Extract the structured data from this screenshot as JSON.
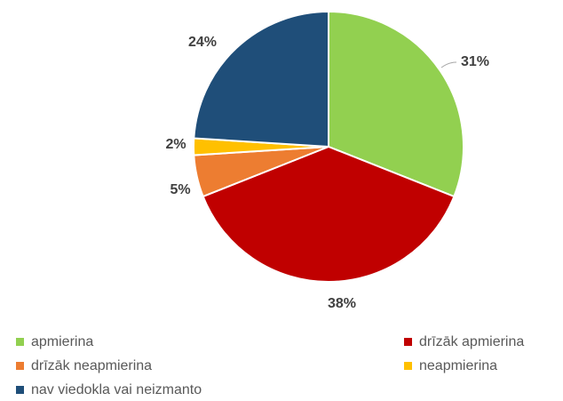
{
  "chart_data": {
    "type": "pie",
    "categories": [
      "apmierina",
      "drīzāk apmierina",
      "drīzāk neapmierina",
      "neapmierina",
      "nav viedokla vai neizmanto"
    ],
    "values": [
      31,
      38,
      5,
      2,
      24
    ],
    "value_labels": [
      "31%",
      "38%",
      "5%",
      "2%",
      "24%"
    ],
    "colors": [
      "#92d050",
      "#c00000",
      "#ed7d31",
      "#ffc000",
      "#1f4e79"
    ]
  }
}
